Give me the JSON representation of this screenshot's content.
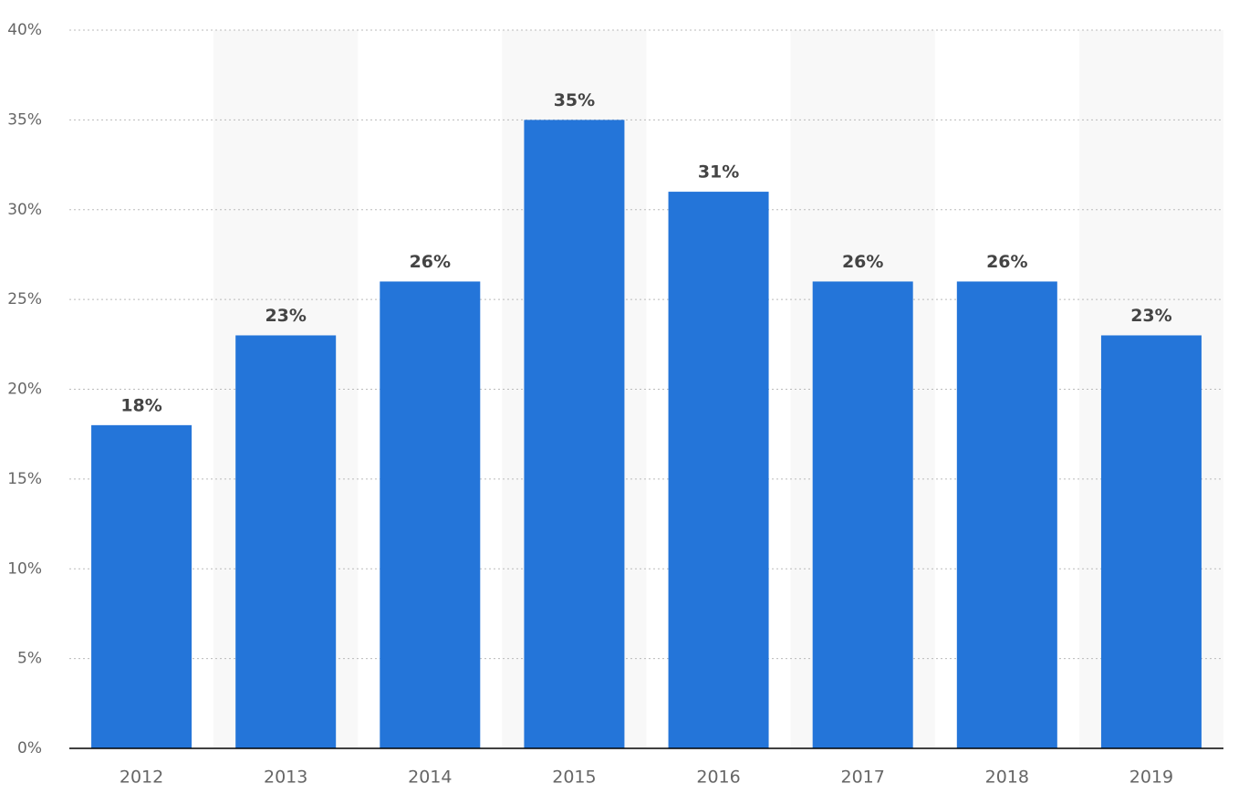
{
  "chart_data": {
    "type": "bar",
    "categories": [
      "2012",
      "2013",
      "2014",
      "2015",
      "2016",
      "2017",
      "2018",
      "2019"
    ],
    "values": [
      18,
      23,
      26,
      35,
      31,
      26,
      26,
      23
    ],
    "value_labels": [
      "18%",
      "23%",
      "26%",
      "35%",
      "31%",
      "26%",
      "26%",
      "23%"
    ],
    "color": "#2475d9",
    "ylim": [
      0,
      40
    ],
    "yticks": [
      {
        "value": 0,
        "label": "0%"
      },
      {
        "value": 5,
        "label": "5%"
      },
      {
        "value": 10,
        "label": "10%"
      },
      {
        "value": 15,
        "label": "15%"
      },
      {
        "value": 20,
        "label": "20%"
      },
      {
        "value": 25,
        "label": "25%"
      },
      {
        "value": 30,
        "label": "30%"
      },
      {
        "value": 35,
        "label": "35%"
      },
      {
        "value": 40,
        "label": "40%"
      }
    ],
    "grid": true
  }
}
